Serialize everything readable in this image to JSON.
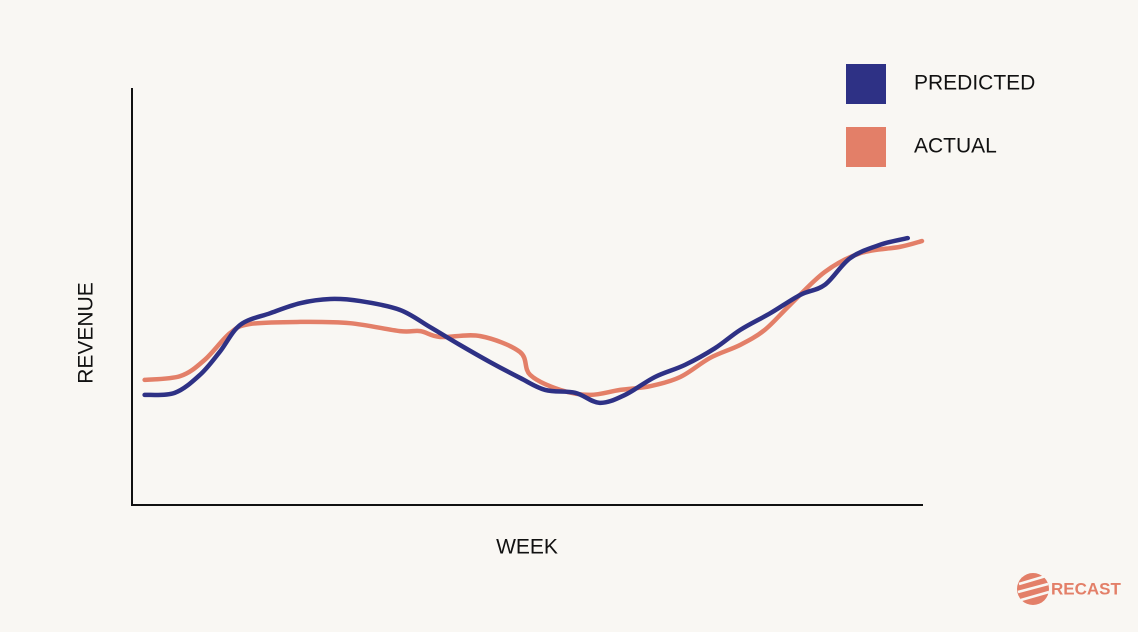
{
  "chart_data": {
    "type": "line",
    "xlabel": "WEEK",
    "ylabel": "REVENUE",
    "brand": "RECAST",
    "xlim": [
      0,
      100
    ],
    "ylim": [
      0,
      100
    ],
    "grid": false,
    "legend": "upper right",
    "series": [
      {
        "name": "PREDICTED",
        "color": "#2e3185",
        "x": [
          1.6,
          5.4,
          8.6,
          11.1,
          13.7,
          17.5,
          21.3,
          25.1,
          28.9,
          33.9,
          37.7,
          41.5,
          45.3,
          49.1,
          52.3,
          56.1,
          59.2,
          62.4,
          66.2,
          70.0,
          73.8,
          77.0,
          80.8,
          84.6,
          87.7,
          90.9,
          94.7,
          98.2
        ],
        "values": [
          26.4,
          26.9,
          31.2,
          36.7,
          43.2,
          46.0,
          48.4,
          49.4,
          48.9,
          46.8,
          42.7,
          38.4,
          34.3,
          30.5,
          27.6,
          26.9,
          24.5,
          26.4,
          30.7,
          33.6,
          37.6,
          42.0,
          46.0,
          50.4,
          52.8,
          59.2,
          62.4,
          64.0
        ]
      },
      {
        "name": "ACTUAL",
        "color": "#e37f68",
        "x": [
          1.6,
          6.1,
          9.2,
          12.4,
          14.9,
          21.3,
          27.6,
          33.9,
          36.5,
          39.0,
          44.1,
          49.1,
          50.4,
          54.2,
          58.0,
          61.8,
          65.6,
          69.4,
          73.2,
          77.0,
          80.1,
          83.3,
          87.7,
          92.2,
          97.2,
          100
        ],
        "values": [
          30.0,
          30.9,
          34.8,
          41.2,
          43.4,
          43.9,
          43.6,
          41.7,
          41.7,
          40.3,
          40.5,
          36.7,
          31.2,
          27.6,
          26.4,
          27.6,
          28.5,
          30.7,
          35.3,
          38.4,
          42.0,
          48.0,
          55.9,
          60.4,
          61.9,
          63.3
        ]
      }
    ]
  }
}
